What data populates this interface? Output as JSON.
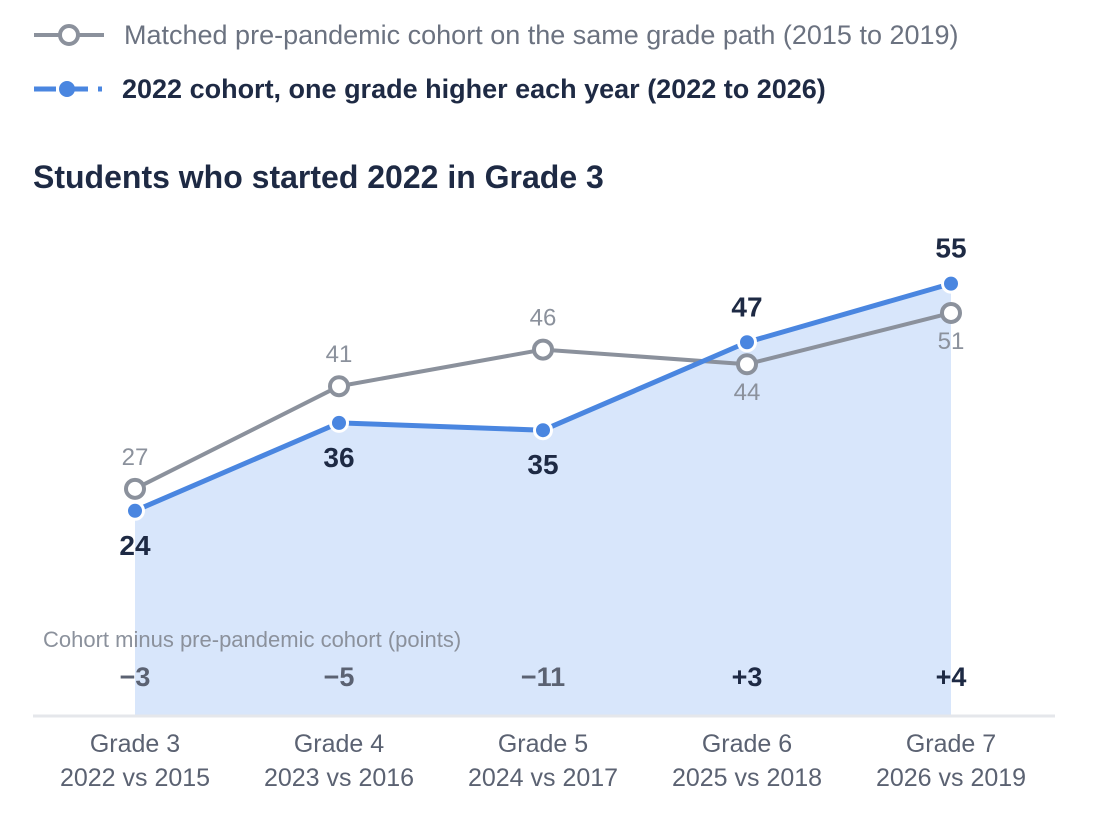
{
  "legend": {
    "reference_label": "Matched pre-pandemic cohort on the same grade path (2015 to 2019)",
    "current_label": "2022 cohort, one grade higher each year (2022 to 2026)"
  },
  "colors": {
    "reference": "#8b919c",
    "current": "#4a86e0",
    "area": "#d8e6fb",
    "axis": "#e5e7eb"
  },
  "chart_data": {
    "type": "line",
    "title": "Students who started 2022 in Grade 3",
    "categories": [
      {
        "grade": "Grade 3",
        "years": "2022 vs 2015"
      },
      {
        "grade": "Grade 4",
        "years": "2023 vs 2016"
      },
      {
        "grade": "Grade 5",
        "years": "2024 vs 2017"
      },
      {
        "grade": "Grade 6",
        "years": "2025 vs 2018"
      },
      {
        "grade": "Grade 7",
        "years": "2026 vs 2019"
      }
    ],
    "series": [
      {
        "key": "reference",
        "values": [
          27,
          41,
          46,
          44,
          51
        ]
      },
      {
        "key": "current",
        "values": [
          24,
          36,
          35,
          47,
          55
        ]
      }
    ],
    "difference_title": "Cohort minus pre-pandemic cohort (points)",
    "differences": [
      "−3",
      "−5",
      "−11",
      "+3",
      "+4"
    ],
    "ylim": [
      -4,
      63
    ]
  }
}
